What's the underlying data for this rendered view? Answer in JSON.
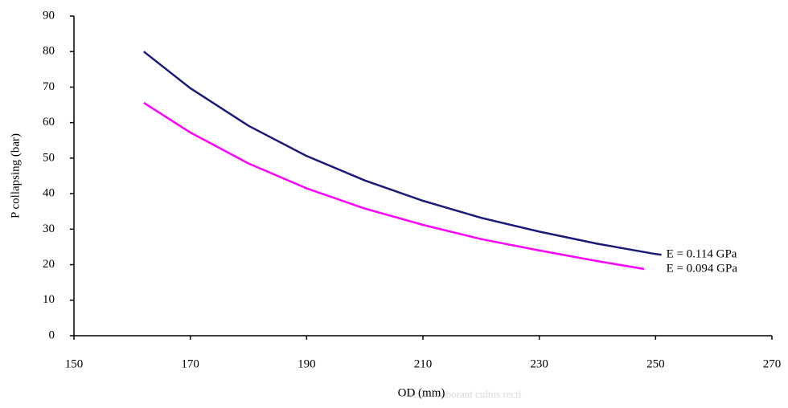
{
  "chart_data": {
    "type": "line",
    "xlabel": "OD (mm)",
    "ylabel": "P collapsing (bar)",
    "watermark": "Pectora roborant cultus recti",
    "xlim": [
      150,
      270
    ],
    "xticks": [
      150,
      170,
      190,
      210,
      230,
      250,
      270
    ],
    "ylim": [
      0,
      90
    ],
    "yticks": [
      0,
      10,
      20,
      30,
      40,
      50,
      60,
      70,
      80,
      90
    ],
    "grid": false,
    "series": [
      {
        "name": "E = 0.114 GPa",
        "color": "#1a1a7a",
        "x": [
          162,
          170,
          180,
          190,
          200,
          210,
          220,
          230,
          240,
          250,
          251
        ],
        "values": [
          80,
          69.7,
          59.1,
          50.6,
          43.7,
          38.0,
          33.2,
          29.3,
          25.9,
          23.0,
          22.8
        ]
      },
      {
        "name": "E = 0.094 GPa",
        "color": "#ff00ff",
        "x": [
          162,
          170,
          180,
          190,
          200,
          210,
          220,
          230,
          240,
          248
        ],
        "values": [
          65.6,
          57.2,
          48.5,
          41.5,
          35.8,
          31.2,
          27.2,
          24.0,
          21.0,
          18.8
        ]
      }
    ]
  }
}
